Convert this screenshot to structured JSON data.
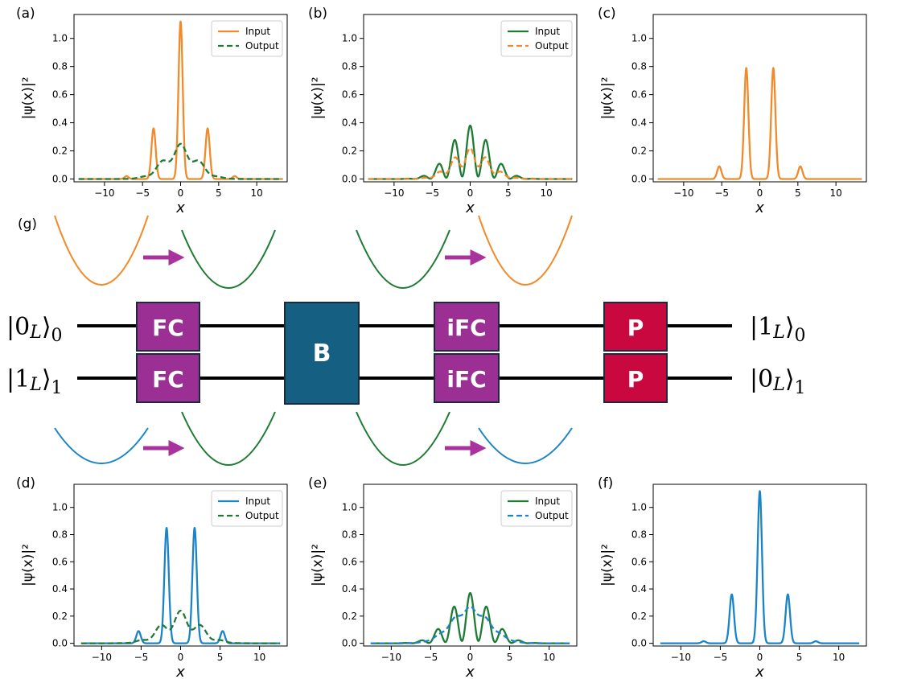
{
  "colors": {
    "orange": "#f08a2a",
    "green": "#1e7b34",
    "blue": "#1a84c7",
    "purple_gate": "#9b2f94",
    "purple_arrow": "#a8339c",
    "teal_gate": "#155f82",
    "red_gate": "#c8083e",
    "gate_border": "#1a2a40"
  },
  "axis_labels": {
    "x": "x",
    "y": "|ψ(x)|²"
  },
  "chart_data": [
    {
      "id": "a",
      "label": "(a)",
      "type": "line",
      "xlim": [
        -14,
        14
      ],
      "ylim": [
        -0.02,
        1.17
      ],
      "xticks": [
        -10,
        -5,
        0,
        5,
        10
      ],
      "xticklabels": [
        "−10",
        "−5",
        "0",
        "5",
        "10"
      ],
      "yticks": [
        0,
        0.2,
        0.4,
        0.6,
        0.8,
        1.0
      ],
      "yticklabels": [
        "0.0",
        "0.2",
        "0.4",
        "0.6",
        "0.8",
        "1.0"
      ],
      "xlabel": "x",
      "ylabel": "|ψ(x)|²",
      "legend_position": "top-right",
      "series": [
        {
          "name": "Input",
          "color": "#f08a2a",
          "dashed": false,
          "range": [
            -13.4,
            13.4
          ],
          "shape": {
            "kind": "comb",
            "spacing": 3.55,
            "offset": 0,
            "amps": [
              0.02,
              0.36,
              1.12,
              0.36,
              0.02
            ],
            "width": 0.28
          }
        },
        {
          "name": "Output",
          "color": "#1e7b34",
          "dashed": true,
          "range": [
            -13.4,
            13.4
          ],
          "shape": {
            "kind": "fringe",
            "center": 0,
            "sigma": 2.2,
            "amp": 0.25,
            "freq": 2.3,
            "depth": 0.38
          }
        }
      ]
    },
    {
      "id": "b",
      "label": "(b)",
      "type": "line",
      "xlim": [
        -14,
        14
      ],
      "ylim": [
        -0.02,
        1.17
      ],
      "xticks": [
        -10,
        -5,
        0,
        5,
        10
      ],
      "xticklabels": [
        "−10",
        "−5",
        "0",
        "5",
        "10"
      ],
      "yticks": [
        0,
        0.2,
        0.4,
        0.6,
        0.8,
        1.0
      ],
      "yticklabels": [
        "0.0",
        "0.2",
        "0.4",
        "0.6",
        "0.8",
        "1.0"
      ],
      "xlabel": "x",
      "ylabel": "|ψ(x)|²",
      "legend_position": "top-right",
      "series": [
        {
          "name": "Input",
          "color": "#1e7b34",
          "dashed": false,
          "range": [
            -13.4,
            13.4
          ],
          "shape": {
            "kind": "fringe",
            "center": 0,
            "sigma": 2.6,
            "amp": 0.38,
            "freq": 3.0,
            "depth": 0.95
          }
        },
        {
          "name": "Output",
          "color": "#f08a2a",
          "dashed": true,
          "range": [
            -13.4,
            13.4
          ],
          "shape": {
            "kind": "fringe",
            "center": 0,
            "sigma": 2.4,
            "amp": 0.22,
            "freq": 3.0,
            "depth": 0.55
          }
        }
      ]
    },
    {
      "id": "c",
      "label": "(c)",
      "type": "line",
      "xlim": [
        -14,
        14
      ],
      "ylim": [
        -0.02,
        1.17
      ],
      "xticks": [
        -10,
        -5,
        0,
        5,
        10
      ],
      "xticklabels": [
        "−10",
        "−5",
        "0",
        "5",
        "10"
      ],
      "yticks": [
        0,
        0.2,
        0.4,
        0.6,
        0.8,
        1.0
      ],
      "yticklabels": [
        "0.0",
        "0.2",
        "0.4",
        "0.6",
        "0.8",
        "1.0"
      ],
      "xlabel": "x",
      "ylabel": "|ψ(x)|²",
      "legend_position": "none",
      "series": [
        {
          "name": "",
          "color": "#f08a2a",
          "dashed": false,
          "range": [
            -13.4,
            13.4
          ],
          "shape": {
            "kind": "comb",
            "spacing": 3.55,
            "offset": 1.775,
            "amps": [
              0.09,
              0.79,
              0.79,
              0.09
            ],
            "width": 0.28
          }
        }
      ]
    },
    {
      "id": "d",
      "label": "(d)",
      "type": "line",
      "xlim": [
        -13.5,
        13.5
      ],
      "ylim": [
        -0.02,
        1.17
      ],
      "xticks": [
        -10,
        -5,
        0,
        5,
        10
      ],
      "xticklabels": [
        "−10",
        "−5",
        "0",
        "5",
        "10"
      ],
      "yticks": [
        0,
        0.2,
        0.4,
        0.6,
        0.8,
        1.0
      ],
      "yticklabels": [
        "0.0",
        "0.2",
        "0.4",
        "0.6",
        "0.8",
        "1.0"
      ],
      "xlabel": "x",
      "ylabel": "|ψ(x)|²",
      "legend_position": "top-right",
      "series": [
        {
          "name": "Input",
          "color": "#1a84c7",
          "dashed": false,
          "range": [
            -12.6,
            12.6
          ],
          "shape": {
            "kind": "comb",
            "spacing": 3.55,
            "offset": 1.775,
            "amps": [
              0.09,
              0.85,
              0.85,
              0.09
            ],
            "width": 0.28
          }
        },
        {
          "name": "Output",
          "color": "#1e7b34",
          "dashed": true,
          "range": [
            -12.6,
            12.6
          ],
          "shape": {
            "kind": "fringe",
            "center": 0,
            "sigma": 2.4,
            "amp": 0.24,
            "freq": 2.3,
            "depth": 0.5
          }
        }
      ]
    },
    {
      "id": "e",
      "label": "(e)",
      "type": "line",
      "xlim": [
        -13.5,
        13.5
      ],
      "ylim": [
        -0.02,
        1.17
      ],
      "xticks": [
        -10,
        -5,
        0,
        5,
        10
      ],
      "xticklabels": [
        "−10",
        "−5",
        "0",
        "5",
        "10"
      ],
      "yticks": [
        0,
        0.2,
        0.4,
        0.6,
        0.8,
        1.0
      ],
      "yticklabels": [
        "0.0",
        "0.2",
        "0.4",
        "0.6",
        "0.8",
        "1.0"
      ],
      "xlabel": "x",
      "ylabel": "|ψ(x)|²",
      "legend_position": "top-right",
      "series": [
        {
          "name": "Input",
          "color": "#1e7b34",
          "dashed": false,
          "range": [
            -12.6,
            12.6
          ],
          "shape": {
            "kind": "fringe",
            "center": 0,
            "sigma": 2.6,
            "amp": 0.37,
            "freq": 3.0,
            "depth": 0.95
          }
        },
        {
          "name": "Output",
          "color": "#1a84c7",
          "dashed": true,
          "range": [
            -12.6,
            12.6
          ],
          "shape": {
            "kind": "fringe",
            "center": 0,
            "sigma": 2.4,
            "amp": 0.27,
            "freq": 3.0,
            "depth": 0.15
          }
        }
      ]
    },
    {
      "id": "f",
      "label": "(f)",
      "type": "line",
      "xlim": [
        -13.5,
        13.5
      ],
      "ylim": [
        -0.02,
        1.17
      ],
      "xticks": [
        -10,
        -5,
        0,
        5,
        10
      ],
      "xticklabels": [
        "−10",
        "−5",
        "0",
        "5",
        "10"
      ],
      "yticks": [
        0,
        0.2,
        0.4,
        0.6,
        0.8,
        1.0
      ],
      "yticklabels": [
        "0.0",
        "0.2",
        "0.4",
        "0.6",
        "0.8",
        "1.0"
      ],
      "xlabel": "x",
      "ylabel": "|ψ(x)|²",
      "legend_position": "none",
      "series": [
        {
          "name": "",
          "color": "#1a84c7",
          "dashed": false,
          "range": [
            -12.6,
            12.6
          ],
          "shape": {
            "kind": "comb",
            "spacing": 3.55,
            "offset": 0,
            "amps": [
              0.015,
              0.36,
              1.12,
              0.36,
              0.015
            ],
            "width": 0.28
          }
        }
      ]
    }
  ],
  "circuit": {
    "label": "(g)",
    "input_kets": [
      {
        "digit": "0",
        "sub": "L",
        "wire": "0"
      },
      {
        "digit": "1",
        "sub": "L",
        "wire": "1"
      }
    ],
    "output_kets": [
      {
        "digit": "1",
        "sub": "L",
        "wire": "0"
      },
      {
        "digit": "0",
        "sub": "L",
        "wire": "1"
      }
    ],
    "gates": {
      "fc": "FC",
      "b": "B",
      "ifc": "iFC",
      "p": "P"
    },
    "potentials_top": [
      "orange",
      "green",
      "green",
      "orange"
    ],
    "potentials_bottom": [
      "blue",
      "green",
      "green",
      "blue"
    ]
  }
}
